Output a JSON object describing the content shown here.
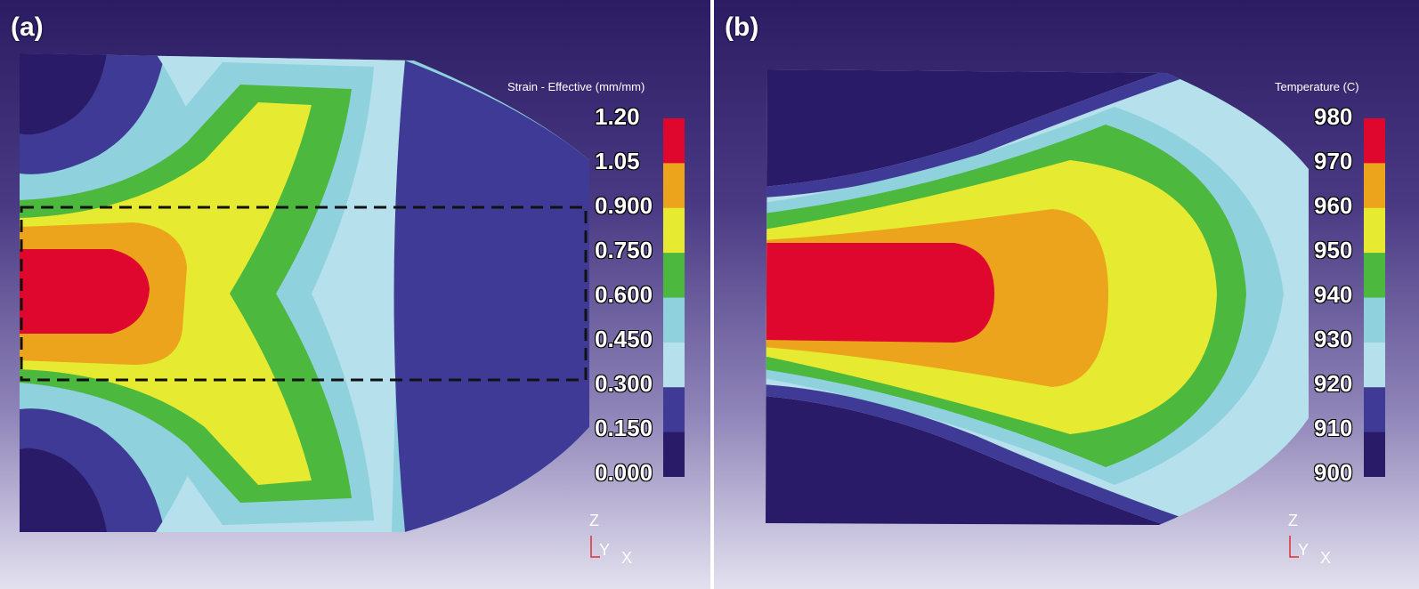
{
  "panel_a": {
    "label": "(a)",
    "legend_title": "Strain - Effective (mm/mm)",
    "ticks": [
      "1.20",
      "1.05",
      "0.900",
      "0.750",
      "0.600",
      "0.450",
      "0.300",
      "0.150",
      "0.000"
    ],
    "axes": {
      "z": "Z",
      "y": "Y",
      "x": "X"
    }
  },
  "panel_b": {
    "label": "(b)",
    "legend_title": "Temperature (C)",
    "ticks": [
      "980",
      "970",
      "960",
      "950",
      "940",
      "930",
      "920",
      "910",
      "900"
    ],
    "axes": {
      "z": "Z",
      "y": "Y",
      "x": "X"
    }
  },
  "colormap": [
    "#e0072f",
    "#eba41c",
    "#e6ea30",
    "#4cb83e",
    "#8fd1dd",
    "#b6e0ec",
    "#3e3a95",
    "#2a1b68"
  ]
}
